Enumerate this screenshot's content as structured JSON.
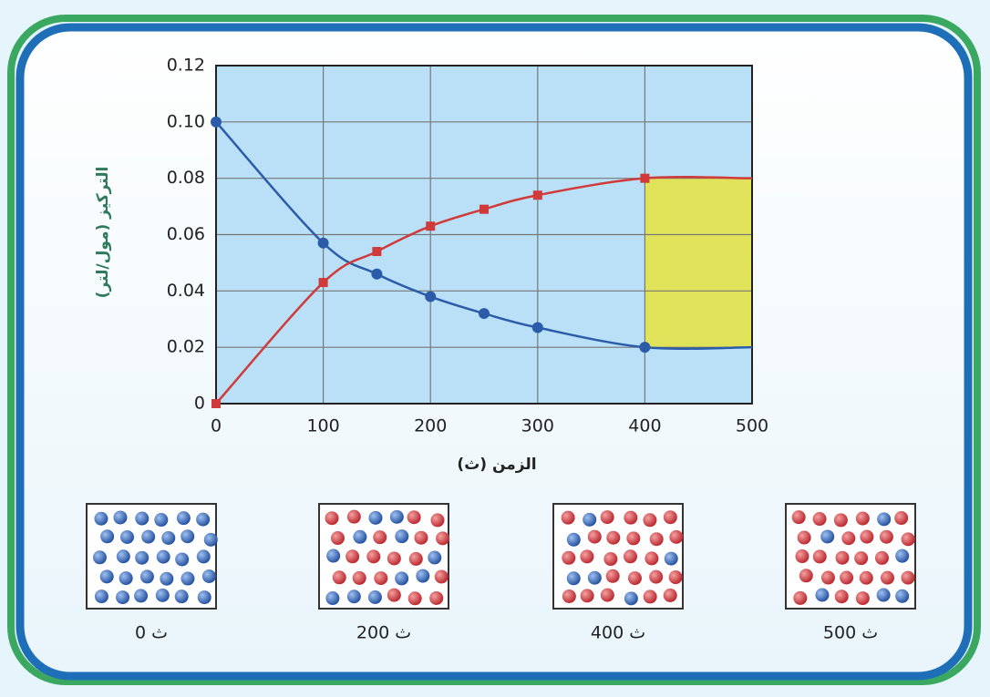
{
  "chart_data": {
    "type": "line",
    "x_label": "الزمن (ث)",
    "y_label": "التركيز (مول/لتر)",
    "x": [
      0,
      100,
      150,
      200,
      250,
      300,
      400,
      500
    ],
    "series": [
      {
        "color": "#2a5caa",
        "marker": "circle",
        "values": [
          0.1,
          0.057,
          0.046,
          0.038,
          0.032,
          0.027,
          0.02,
          0.02
        ]
      },
      {
        "color": "#d03a3a",
        "marker": "square",
        "values": [
          0,
          0.043,
          0.054,
          0.063,
          0.069,
          0.074,
          0.08,
          0.08
        ]
      }
    ],
    "highlight": {
      "from": 400,
      "to": 500,
      "color": "#e0e35a"
    },
    "xlim": [
      0,
      500
    ],
    "xticks": [
      0,
      100,
      200,
      300,
      400,
      500
    ],
    "ylim": [
      0,
      0.12
    ],
    "yticks": [
      0,
      0.02,
      0.04,
      0.06,
      0.08,
      {
        "value": 0.1,
        "label": "0.10"
      },
      0.12
    ],
    "grid": true
  },
  "panels": [
    {
      "label": "0 ث"
    },
    {
      "label": "200 ث"
    },
    {
      "label": "400 ث"
    },
    {
      "label": "500 ث"
    }
  ]
}
